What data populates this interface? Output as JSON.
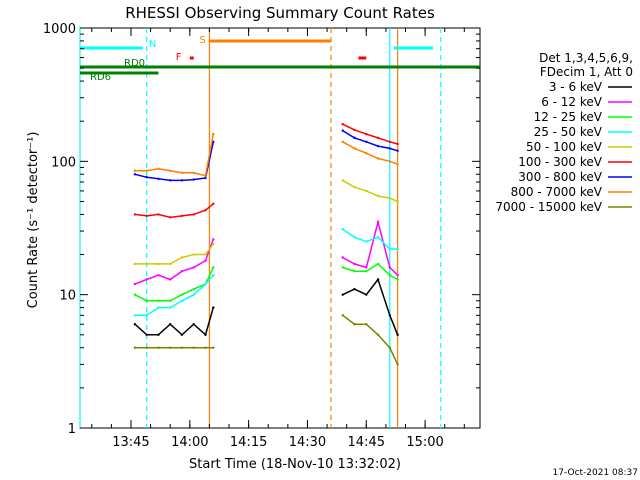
{
  "title": "RHESSI Observing Summary Count Rates",
  "footer_timestamp": "17-Oct-2021 08:37",
  "chart_data": {
    "type": "line",
    "title": "RHESSI Observing Summary Count Rates",
    "xlabel": "Start Time (18-Nov-10 13:32:02)",
    "ylabel": "Count Rate (s⁻¹ detector⁻¹)",
    "yscale": "log",
    "ylim": [
      1,
      1000
    ],
    "xlim": [
      "13:32",
      "15:14"
    ],
    "x_ticks": [
      "13:45",
      "14:00",
      "14:15",
      "14:30",
      "14:45",
      "15:00"
    ],
    "y_ticks": [
      "1",
      "10",
      "100",
      "1000"
    ],
    "grid": false,
    "legend_position": "right",
    "legend_header": [
      "Det 1,3,4,5,6,9,",
      "FDecim 1, Att 0"
    ],
    "series": [
      {
        "name": "3 - 6 keV",
        "color": "#000000",
        "x": [
          "13:46",
          "13:52",
          "13:59",
          "14:02",
          "14:06",
          "14:38",
          "14:42",
          "14:45",
          "14:47",
          "14:50",
          "14:53"
        ],
        "y": [
          null,
          null,
          null,
          null,
          null,
          null,
          null,
          null,
          null,
          null,
          null
        ],
        "segments": [
          {
            "x": [
              "13:46",
              "13:49",
              "13:52",
              "13:55",
              "13:58",
              "14:01",
              "14:04",
              "14:06"
            ],
            "y": [
              null,
              null,
              null,
              null,
              null,
              null,
              null,
              null
            ]
          }
        ]
      },
      {
        "name": "6 - 12 keV",
        "color": "#ff00ff"
      },
      {
        "name": "12 - 25 keV",
        "color": "#00ff00"
      },
      {
        "name": "25 - 50 keV",
        "color": "#00ffff"
      },
      {
        "name": "50 - 100 keV",
        "color": "#cccc00"
      },
      {
        "name": "100 - 300 keV",
        "color": "#ff0000"
      },
      {
        "name": "300 - 800 keV",
        "color": "#0000ff"
      },
      {
        "name": "800 - 7000 keV",
        "color": "#ff8000"
      },
      {
        "name": "7000 - 15000 keV",
        "color": "#808000"
      }
    ],
    "data_segments": {
      "left": {
        "x": [
          "13:46",
          "13:49",
          "13:52",
          "13:55",
          "13:58",
          "14:01",
          "14:04",
          "14:06"
        ]
      },
      "right": {
        "x": [
          "14:39",
          "14:42",
          "14:45",
          "14:48",
          "14:51",
          "14:53"
        ]
      }
    },
    "values": {
      "3 - 6 keV": {
        "left": [
          6,
          5,
          5,
          6,
          5,
          6,
          5,
          8
        ],
        "right": [
          10,
          11,
          10,
          13,
          7,
          5
        ]
      },
      "6 - 12 keV": {
        "left": [
          12,
          13,
          14,
          13,
          15,
          16,
          18,
          26
        ],
        "right": [
          19,
          17,
          16,
          35,
          16,
          14
        ]
      },
      "12 - 25 keV": {
        "left": [
          10,
          9,
          9,
          9,
          10,
          11,
          12,
          16
        ],
        "right": [
          16,
          15,
          15,
          17,
          14,
          13
        ]
      },
      "25 - 50 keV": {
        "left": [
          7,
          7,
          8,
          8,
          9,
          10,
          12,
          14
        ],
        "right": [
          31,
          27,
          25,
          27,
          22,
          22
        ]
      },
      "50 - 100 keV": {
        "left": [
          17,
          17,
          17,
          17,
          19,
          20,
          20,
          24
        ],
        "right": [
          72,
          64,
          60,
          55,
          53,
          50
        ]
      },
      "100 - 300 keV": {
        "left": [
          40,
          39,
          40,
          38,
          39,
          40,
          43,
          48
        ],
        "right": [
          190,
          172,
          160,
          150,
          140,
          135
        ]
      },
      "300 - 800 keV": {
        "left": [
          80,
          76,
          74,
          72,
          72,
          73,
          75,
          140
        ],
        "right": [
          170,
          150,
          140,
          130,
          125,
          120
        ]
      },
      "800 - 7000 keV": {
        "left": [
          85,
          85,
          88,
          85,
          82,
          82,
          78,
          160
        ],
        "right": [
          140,
          125,
          115,
          105,
          100,
          95
        ]
      },
      "7000 - 15000 keV": {
        "left": [
          4,
          4,
          4,
          4,
          4,
          4,
          4,
          4
        ],
        "right": [
          7,
          6,
          6,
          5,
          4,
          3
        ]
      }
    },
    "attenuator_bars": [
      {
        "label": "N",
        "color": "#00ffff",
        "segments": [
          [
            "13:32",
            "13:48"
          ],
          [
            "14:52",
            "15:02"
          ]
        ]
      },
      {
        "label": "S",
        "color": "#ff8000",
        "segments": [
          [
            "14:05",
            "14:36"
          ]
        ]
      },
      {
        "label": "F",
        "color": "#ff0000",
        "segments": [
          [
            "14:00",
            "14:01"
          ],
          [
            "14:43",
            "14:45"
          ]
        ]
      },
      {
        "label": "RD0",
        "color": "#008000",
        "segments": [
          [
            "13:32",
            "15:14"
          ]
        ]
      },
      {
        "label": "RD6",
        "color": "#008000",
        "segments": [
          [
            "13:32",
            "13:52"
          ]
        ]
      }
    ],
    "vertical_markers": [
      {
        "x": "13:49",
        "color": "#00ffff",
        "style": "dashed"
      },
      {
        "x": "14:05",
        "color": "#ff8000",
        "style": "solid"
      },
      {
        "x": "14:36",
        "color": "#ff8000",
        "style": "dashed"
      },
      {
        "x": "14:51",
        "color": "#00ffff",
        "style": "solid"
      },
      {
        "x": "14:53",
        "color": "#ff8000",
        "style": "solid"
      },
      {
        "x": "15:04",
        "color": "#00ffff",
        "style": "dashed"
      },
      {
        "x": "13:32",
        "color": "#00ffff",
        "style": "solid"
      }
    ]
  }
}
